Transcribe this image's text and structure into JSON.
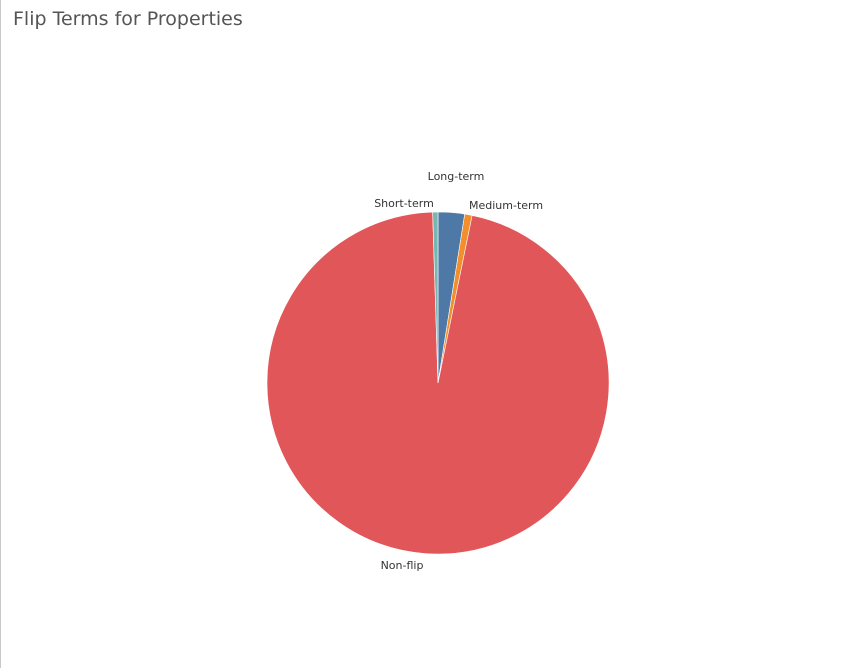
{
  "chart_data": {
    "type": "pie",
    "title": "Flip Terms for Properties",
    "slices": [
      {
        "label": "Long-term",
        "value": 2.5,
        "color": "#4e79a7"
      },
      {
        "label": "Medium-term",
        "value": 0.7,
        "color": "#f28e2b"
      },
      {
        "label": "Non-flip",
        "value": 96.3,
        "color": "#e15759"
      },
      {
        "label": "Short-term",
        "value": 0.5,
        "color": "#76b7b2"
      }
    ]
  }
}
